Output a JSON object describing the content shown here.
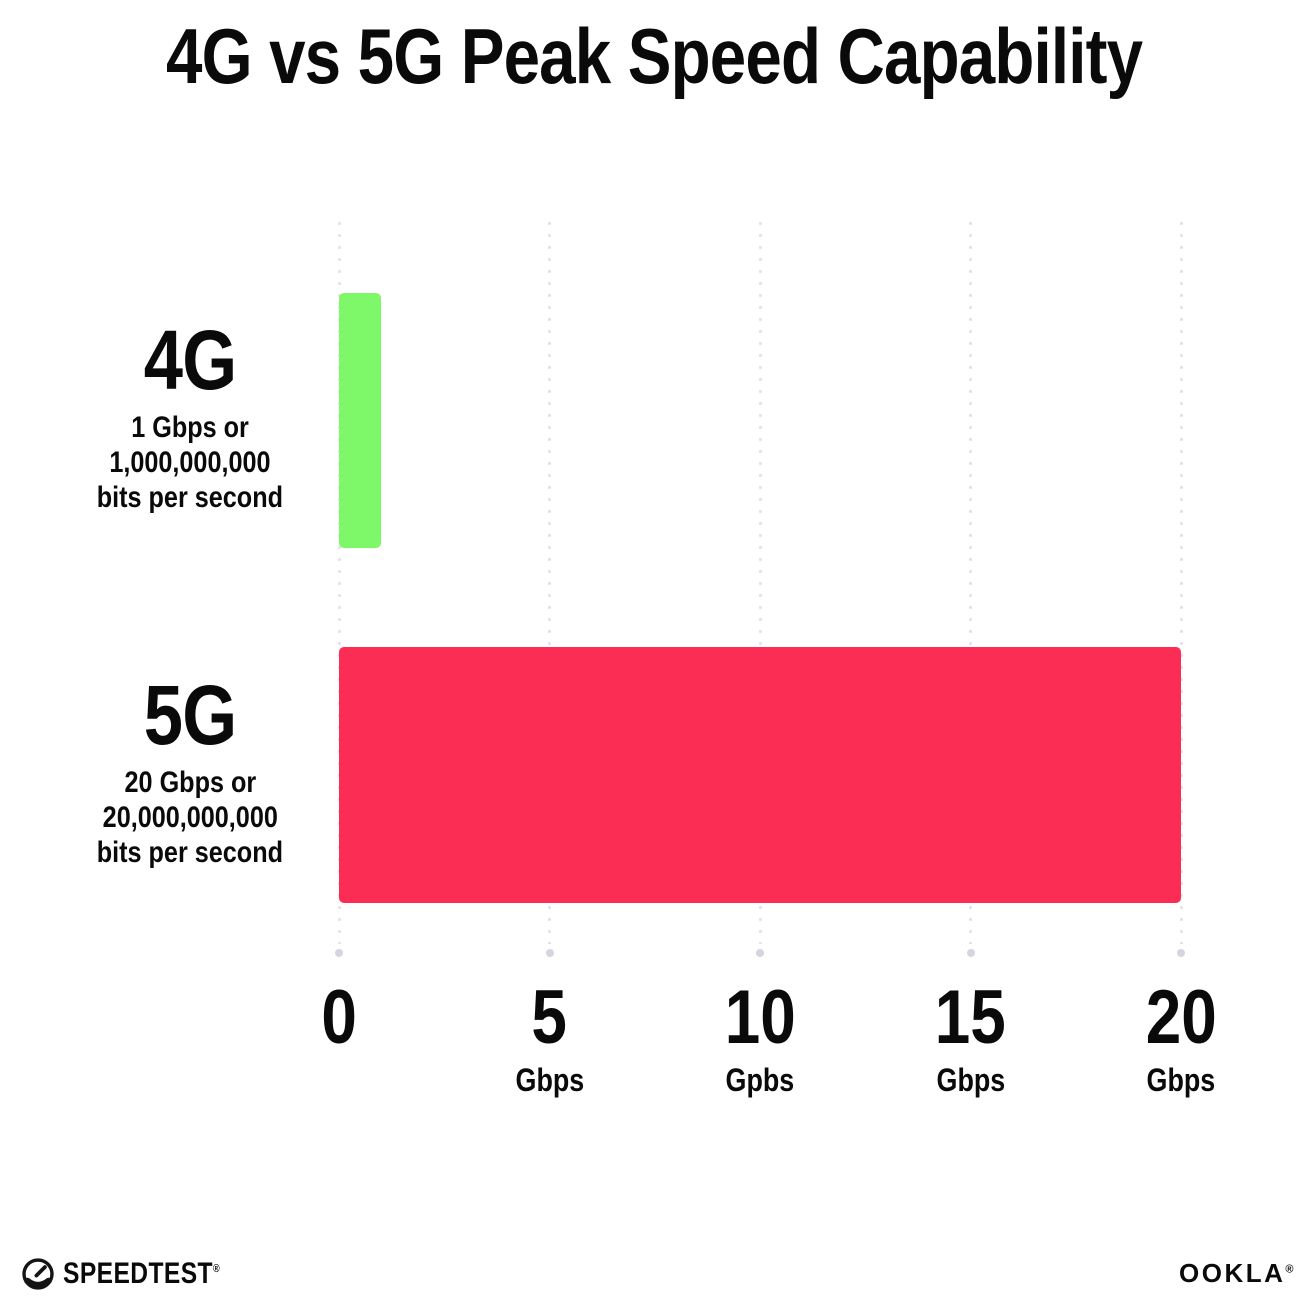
{
  "title": "4G vs 5G Peak Speed Capability",
  "colors": {
    "bar_4g": "#7EF768",
    "bar_5g": "#FC2D55",
    "grid_dot": "#E2E2EB",
    "grid_end_dot": "#D5D5E1",
    "text": "#0A0A0A",
    "background": "#FFFFFF"
  },
  "chart_data": {
    "type": "bar",
    "orientation": "horizontal",
    "title": "4G vs 5G Peak Speed Capability",
    "categories": [
      "4G",
      "5G"
    ],
    "values": [
      1,
      20
    ],
    "unit": "Gbps",
    "xlim": [
      0,
      20
    ],
    "x_tick_values": [
      0,
      5,
      10,
      15,
      20
    ],
    "grid": "dotted-vertical",
    "legend": "none",
    "rows": [
      {
        "label": "4G",
        "value_gbps": 1,
        "color": "#7EF768",
        "sublines": [
          "1 Gbps or",
          "1,000,000,000",
          "bits per second"
        ]
      },
      {
        "label": "5G",
        "value_gbps": 20,
        "color": "#FC2D55",
        "sublines": [
          "20 Gbps or",
          "20,000,000,000",
          "bits per second"
        ]
      }
    ]
  },
  "axis": {
    "ticks": [
      {
        "value": "0",
        "unit": ""
      },
      {
        "value": "5",
        "unit": "Gbps"
      },
      {
        "value": "10",
        "unit": "Gpbs"
      },
      {
        "value": "15",
        "unit": "Gbps"
      },
      {
        "value": "20",
        "unit": "Gbps"
      }
    ]
  },
  "footer": {
    "speedtest_label": "SPEEDTEST",
    "speedtest_mark": "®",
    "speedtest_icon": "speedometer-gauge-icon",
    "ookla_label": "OOKLA",
    "ookla_mark": "®"
  }
}
